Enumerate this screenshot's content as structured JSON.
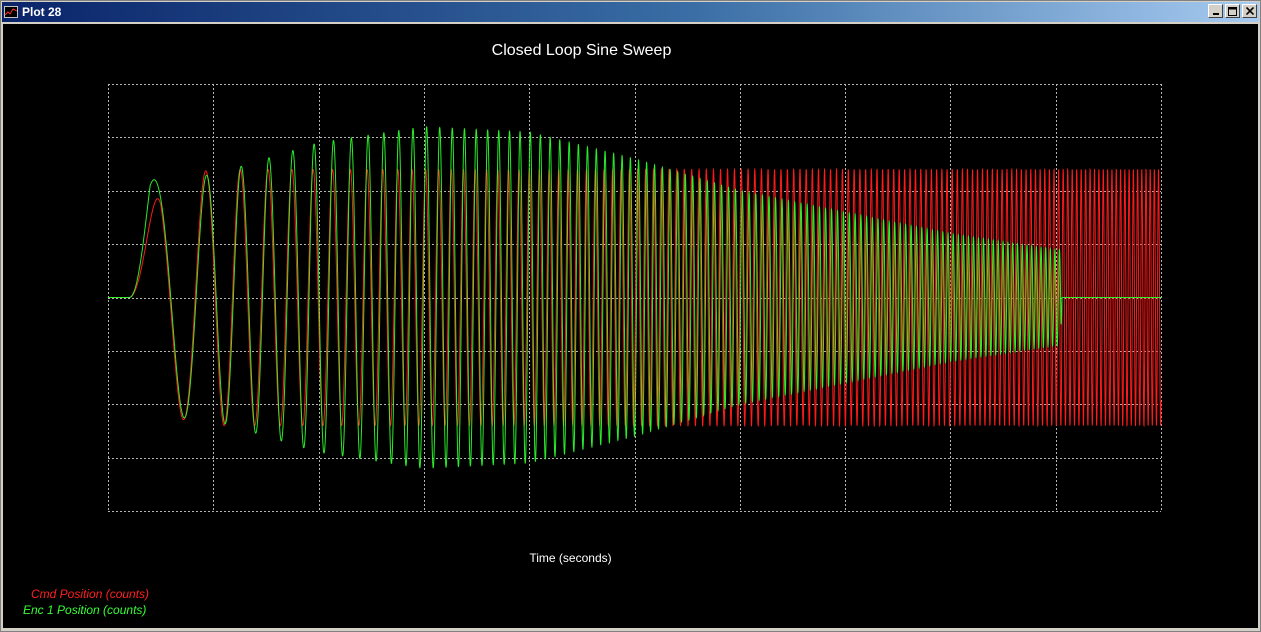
{
  "window": {
    "title": "Plot 28",
    "buttons": [
      "minimize",
      "maximize",
      "close"
    ]
  },
  "colors": {
    "background": "#000000",
    "grid": "#b4b4b4",
    "cmd": "#ff1a1a",
    "enc": "#2cff2c",
    "text": "#ffffff"
  },
  "chart_data": {
    "type": "line",
    "title": "Closed Loop Sine Sweep",
    "xlabel": "Time (seconds)",
    "ylabel": "",
    "xlim": [
      0,
      10
    ],
    "ylim": [
      -4,
      4
    ],
    "grid": true,
    "legend_position": "bottom-left",
    "sweep": {
      "start_hz": 0.8,
      "end_hz": 26,
      "duration": 10
    },
    "series": [
      {
        "name": "Cmd Position (counts)",
        "color": "#ff1a1a",
        "amplitude_envelope": [
          [
            0,
            0
          ],
          [
            0.2,
            0
          ],
          [
            0.5,
            2.2
          ],
          [
            1.0,
            2.4
          ],
          [
            10,
            2.4
          ]
        ]
      },
      {
        "name": "Enc 1 Position (counts)",
        "color": "#2cff2c",
        "amplitude_envelope": [
          [
            0,
            0
          ],
          [
            0.2,
            0
          ],
          [
            0.4,
            2.2
          ],
          [
            1.0,
            2.3
          ],
          [
            2.0,
            2.9
          ],
          [
            3.0,
            3.2
          ],
          [
            4.0,
            3.1
          ],
          [
            5.0,
            2.6
          ],
          [
            6.0,
            2.0
          ],
          [
            7.0,
            1.6
          ],
          [
            8.0,
            1.2
          ],
          [
            9.0,
            0.9
          ],
          [
            9.05,
            0.9
          ],
          [
            9.06,
            0
          ]
        ]
      }
    ]
  }
}
